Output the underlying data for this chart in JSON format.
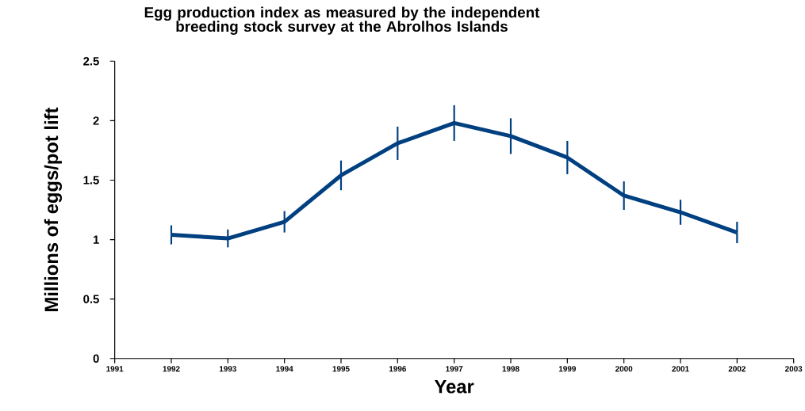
{
  "chart_data": {
    "type": "line",
    "title": "Egg production index as measured by the independent breeding stock survey at the Abrolhos Islands",
    "xlabel": "Year",
    "ylabel": "Millions of eggs/pot lift",
    "x": [
      1992,
      1993,
      1994,
      1995,
      1996,
      1997,
      1998,
      1999,
      2000,
      2001,
      2002
    ],
    "values": [
      1.04,
      1.01,
      1.15,
      1.54,
      1.81,
      1.98,
      1.87,
      1.69,
      1.37,
      1.23,
      1.06
    ],
    "errors": [
      0.08,
      0.075,
      0.09,
      0.125,
      0.14,
      0.15,
      0.15,
      0.14,
      0.12,
      0.105,
      0.09
    ],
    "color": "#004080",
    "marker": "none",
    "line_style": "solid",
    "grid": false,
    "xlim": [
      1991,
      2003
    ],
    "xticks": [
      1991,
      1992,
      1993,
      1994,
      1995,
      1996,
      1997,
      1998,
      1999,
      2000,
      2001,
      2002,
      2003
    ],
    "ylim": [
      0,
      2.5
    ],
    "yticks": [
      0,
      0.5,
      1,
      1.5,
      2,
      2.5
    ]
  }
}
